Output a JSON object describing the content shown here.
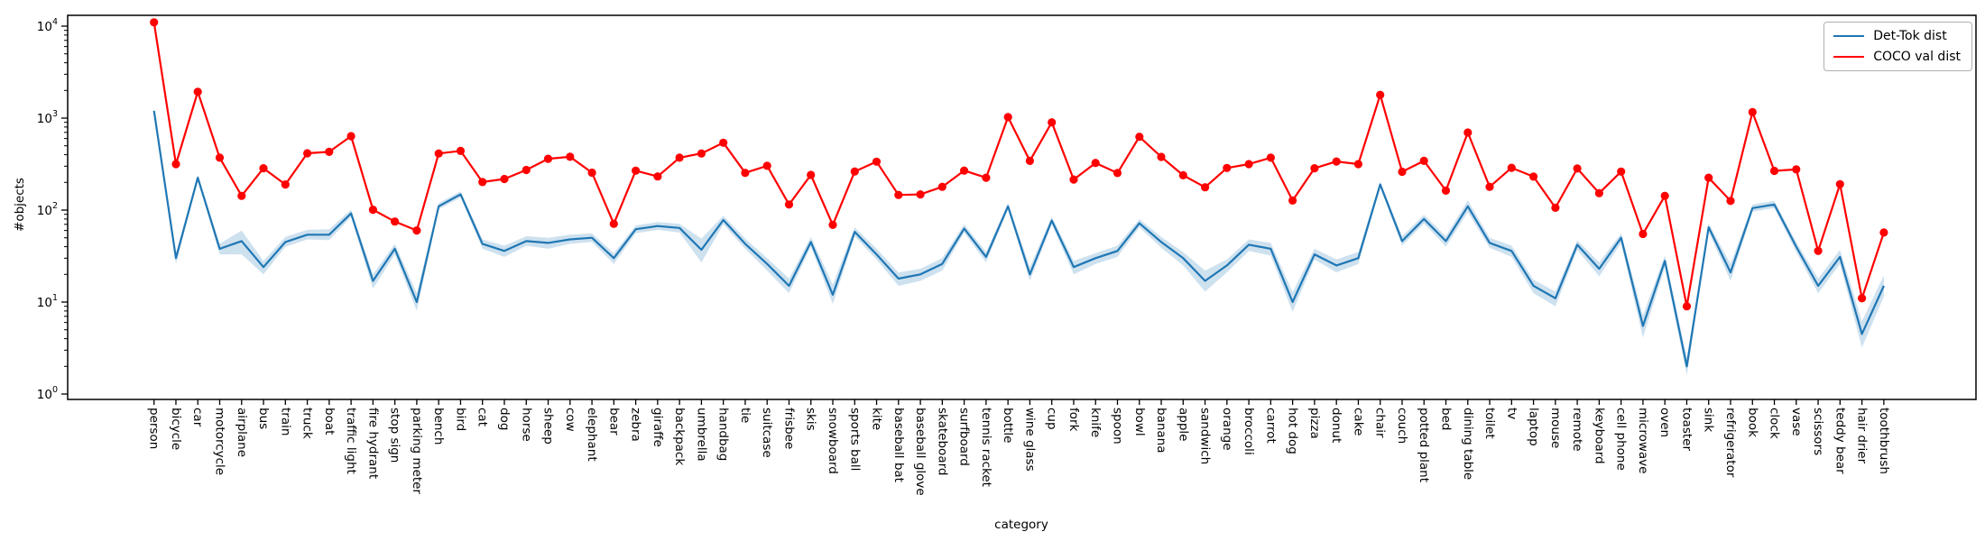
{
  "figure": {
    "background": "#ffffff"
  },
  "legend": {
    "items": [
      {
        "label": "Det-Tok dist",
        "color": "#1f77b4"
      },
      {
        "label": "COCO val dist",
        "color": "#ff0000"
      }
    ]
  },
  "chart_data": {
    "type": "line",
    "title": "",
    "xlabel": "category",
    "ylabel": "#objects",
    "y_scale": "log",
    "ylim": [
      1,
      13000
    ],
    "grid": false,
    "legend_position": "upper right",
    "y_ticks": [
      {
        "base": "10",
        "exp": "0"
      },
      {
        "base": "10",
        "exp": "1"
      },
      {
        "base": "10",
        "exp": "2"
      },
      {
        "base": "10",
        "exp": "3"
      },
      {
        "base": "10",
        "exp": "4"
      }
    ],
    "categories": [
      "person",
      "bicycle",
      "car",
      "motorcycle",
      "airplane",
      "bus",
      "train",
      "truck",
      "boat",
      "traffic light",
      "fire hydrant",
      "stop sign",
      "parking meter",
      "bench",
      "bird",
      "cat",
      "dog",
      "horse",
      "sheep",
      "cow",
      "elephant",
      "bear",
      "zebra",
      "giraffe",
      "backpack",
      "umbrella",
      "handbag",
      "tie",
      "suitcase",
      "frisbee",
      "skis",
      "snowboard",
      "sports ball",
      "kite",
      "baseball bat",
      "baseball glove",
      "skateboard",
      "surfboard",
      "tennis racket",
      "bottle",
      "wine glass",
      "cup",
      "fork",
      "knife",
      "spoon",
      "bowl",
      "banana",
      "apple",
      "sandwich",
      "orange",
      "broccoli",
      "carrot",
      "hot dog",
      "pizza",
      "donut",
      "cake",
      "chair",
      "couch",
      "potted plant",
      "bed",
      "dining table",
      "toilet",
      "tv",
      "laptop",
      "mouse",
      "remote",
      "keyboard",
      "cell phone",
      "microwave",
      "oven",
      "toaster",
      "sink",
      "refrigerator",
      "book",
      "clock",
      "vase",
      "scissors",
      "teddy bear",
      "hair drier",
      "toothbrush"
    ],
    "series": [
      {
        "name": "Det-Tok dist",
        "color": "#1f77b4",
        "marker": "none",
        "band_color": "rgba(31,119,180,0.22)",
        "values": [
          1200,
          30,
          225,
          38,
          46,
          24,
          45,
          54,
          54,
          92,
          17,
          38,
          10,
          110,
          148,
          43,
          36,
          46,
          44,
          48,
          50,
          30,
          62,
          67,
          64,
          37,
          78,
          43,
          26,
          15,
          45,
          12,
          58,
          33,
          18,
          20,
          26,
          63,
          31,
          110,
          20,
          77,
          24,
          30,
          36,
          72,
          45,
          30,
          17,
          25,
          42,
          38,
          10,
          33,
          25,
          30,
          190,
          46,
          80,
          46,
          110,
          44,
          36,
          15,
          11,
          42,
          23,
          50,
          5.5,
          28,
          2,
          65,
          21,
          105,
          115,
          40,
          15,
          31,
          4.5,
          15
        ],
        "band_low": [
          1140,
          26,
          210,
          33,
          33,
          20,
          40,
          48,
          47,
          84,
          14,
          33,
          8,
          102,
          137,
          38,
          31,
          41,
          38,
          43,
          45,
          26,
          56,
          61,
          57,
          27,
          70,
          38,
          22,
          12.5,
          40,
          9.5,
          52,
          29,
          15,
          17,
          22,
          57,
          27,
          102,
          17,
          70,
          20,
          26,
          31,
          65,
          39,
          25,
          13,
          21,
          36,
          32,
          7.8,
          29,
          21,
          26,
          176,
          41,
          72,
          40,
          95,
          39,
          31,
          12.5,
          9,
          37,
          19,
          44,
          4.1,
          24,
          1.6,
          58,
          17,
          96,
          105,
          35,
          12.5,
          26,
          3.2,
          11.5
        ],
        "band_high": [
          1270,
          34,
          242,
          43,
          60,
          28,
          51,
          61,
          62,
          101,
          20,
          43,
          12.5,
          119,
          160,
          48,
          41,
          52,
          50,
          54,
          56,
          34,
          68,
          74,
          71,
          49,
          87,
          49,
          30,
          18,
          51,
          15.5,
          65,
          38,
          21,
          23,
          30,
          70,
          35,
          119,
          24,
          85,
          28,
          34,
          41,
          80,
          51,
          35,
          22,
          29,
          48,
          44,
          12.8,
          38,
          29,
          35,
          205,
          52,
          89,
          52,
          128,
          50,
          41,
          17.5,
          13,
          47,
          27,
          56,
          7.2,
          32,
          2.5,
          72,
          26,
          115,
          126,
          45,
          18,
          37,
          6.2,
          19.5
        ]
      },
      {
        "name": "COCO val dist",
        "color": "#ff0000",
        "marker": "circle",
        "values": [
          11004,
          316,
          1932,
          371,
          143,
          285,
          190,
          415,
          430,
          637,
          101,
          75,
          60,
          413,
          440,
          202,
          218,
          273,
          361,
          380,
          255,
          71,
          268,
          232,
          371,
          413,
          540,
          254,
          303,
          115,
          241,
          69,
          263,
          336,
          146,
          148,
          179,
          269,
          225,
          1025,
          343,
          899,
          215,
          326,
          253,
          626,
          379,
          239,
          177,
          287,
          316,
          371,
          127,
          285,
          338,
          316,
          1791,
          261,
          343,
          163,
          697,
          179,
          288,
          231,
          106,
          283,
          153,
          262,
          55,
          143,
          9,
          225,
          126,
          1161,
          267,
          277,
          36,
          191,
          11,
          57
        ]
      }
    ]
  }
}
